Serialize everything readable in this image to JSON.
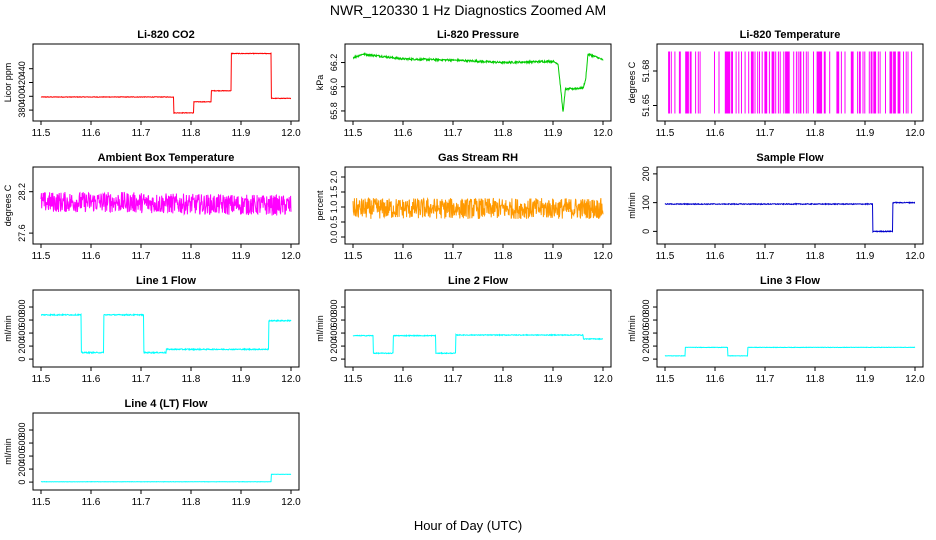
{
  "title": "NWR_120330  1 Hz Diagnostics Zoomed AM",
  "xlabel": "Hour of Day (UTC)",
  "chart_data": [
    {
      "type": "line",
      "title": "Li-820 CO2",
      "ylabel": "Licor ppm",
      "color": "#ff0000",
      "xlim": [
        11.5,
        12.0
      ],
      "ylim": [
        370,
        470
      ],
      "yticks": [
        {
          "v": 380,
          "label": "380"
        },
        {
          "v": 400,
          "label": "400"
        },
        {
          "v": 420,
          "label": "420"
        },
        {
          "v": 440,
          "label": "440"
        }
      ],
      "noise": 0.4,
      "x": [
        11.5,
        11.765,
        11.765,
        11.805,
        11.805,
        11.84,
        11.84,
        11.88,
        11.88,
        11.96,
        11.96,
        12.0
      ],
      "y": [
        399,
        399,
        376,
        376,
        392,
        392,
        408,
        408,
        462,
        462,
        397,
        397
      ]
    },
    {
      "type": "line",
      "title": "Li-820 Pressure",
      "ylabel": "kPa",
      "color": "#00cc00",
      "xlim": [
        11.5,
        12.0
      ],
      "ylim": [
        65.75,
        66.32
      ],
      "yticks": [
        {
          "v": 65.8,
          "label": "65.8"
        },
        {
          "v": 66.0,
          "label": "66.0"
        },
        {
          "v": 66.2,
          "label": "66.2"
        }
      ],
      "noise": 0.008,
      "x": [
        11.5,
        11.52,
        11.6,
        11.7,
        11.8,
        11.9,
        11.91,
        11.915,
        11.92,
        11.925,
        11.96,
        11.965,
        11.97,
        11.99,
        12.0
      ],
      "y": [
        66.24,
        66.27,
        66.23,
        66.22,
        66.2,
        66.21,
        66.19,
        66.0,
        65.79,
        65.98,
        65.99,
        66.05,
        66.27,
        66.24,
        66.22
      ]
    },
    {
      "type": "line",
      "title": "Li-820 Temperature",
      "ylabel": "degrees C",
      "color": "#ff00ff",
      "xlim": [
        11.5,
        12.0
      ],
      "ylim": [
        51.64,
        51.7
      ],
      "yticks": [
        {
          "v": 51.65,
          "label": "51.65"
        },
        {
          "v": 51.68,
          "label": "51.68"
        }
      ],
      "style": "binary",
      "hi": 51.697,
      "lo": 51.643,
      "x": [
        11.5,
        12.0
      ],
      "y": [
        51.697,
        51.697
      ]
    },
    {
      "type": "line",
      "title": "Ambient Box Temperature",
      "ylabel": "degrees C",
      "color": "#ff00ff",
      "xlim": [
        11.5,
        12.0
      ],
      "ylim": [
        27.5,
        28.5
      ],
      "yticks": [
        {
          "v": 27.6,
          "label": "27.6"
        },
        {
          "v": 28.2,
          "label": "28.2"
        }
      ],
      "noise": 0.15,
      "x": [
        11.5,
        11.65,
        11.8,
        12.0
      ],
      "y": [
        28.05,
        28.05,
        28.02,
        28.0
      ]
    },
    {
      "type": "line",
      "title": "Gas Stream RH",
      "ylabel": "percent",
      "color": "#ff9900",
      "xlim": [
        11.5,
        12.0
      ],
      "ylim": [
        -0.1,
        2.2
      ],
      "yticks": [
        {
          "v": 0.0,
          "label": "0.0"
        },
        {
          "v": 0.5,
          "label": "0.5"
        },
        {
          "v": 1.0,
          "label": "1.0"
        },
        {
          "v": 1.5,
          "label": "1.5"
        },
        {
          "v": 2.0,
          "label": "2.0"
        }
      ],
      "noise": 0.35,
      "x": [
        11.5,
        12.0
      ],
      "y": [
        0.95,
        0.95
      ]
    },
    {
      "type": "line",
      "title": "Sample Flow",
      "ylabel": "ml/min",
      "color": "#0000cc",
      "xlim": [
        11.5,
        12.0
      ],
      "ylim": [
        -30,
        210
      ],
      "yticks": [
        {
          "v": 0,
          "label": "0"
        },
        {
          "v": 100,
          "label": "100"
        },
        {
          "v": 200,
          "label": "200"
        }
      ],
      "noise": 1.5,
      "x": [
        11.5,
        11.915,
        11.915,
        11.955,
        11.955,
        12.0
      ],
      "y": [
        95,
        95,
        0,
        0,
        100,
        100
      ]
    },
    {
      "type": "line",
      "title": "Line 1 Flow",
      "ylabel": "ml/min",
      "color": "#00ffff",
      "xlim": [
        11.5,
        12.0
      ],
      "ylim": [
        -60,
        1000
      ],
      "yticks": [
        {
          "v": 0,
          "label": "0"
        },
        {
          "v": 200,
          "label": "200"
        },
        {
          "v": 400,
          "label": "400"
        },
        {
          "v": 600,
          "label": "600"
        },
        {
          "v": 800,
          "label": "800"
        }
      ],
      "noise": 8,
      "x": [
        11.5,
        11.58,
        11.58,
        11.625,
        11.625,
        11.705,
        11.705,
        11.75,
        11.75,
        11.955,
        11.955,
        12.0
      ],
      "y": [
        680,
        680,
        100,
        100,
        680,
        680,
        100,
        100,
        150,
        150,
        590,
        590
      ]
    },
    {
      "type": "line",
      "title": "Line 2 Flow",
      "ylabel": "ml/min",
      "color": "#00ffff",
      "xlim": [
        11.5,
        12.0
      ],
      "ylim": [
        -60,
        1000
      ],
      "yticks": [
        {
          "v": 0,
          "label": "0"
        },
        {
          "v": 200,
          "label": "200"
        },
        {
          "v": 400,
          "label": "400"
        },
        {
          "v": 600,
          "label": "600"
        },
        {
          "v": 800,
          "label": "800"
        }
      ],
      "noise": 6,
      "x": [
        11.5,
        11.54,
        11.54,
        11.58,
        11.58,
        11.665,
        11.665,
        11.705,
        11.705,
        11.96,
        11.96,
        12.0
      ],
      "y": [
        360,
        360,
        90,
        90,
        360,
        360,
        90,
        90,
        370,
        370,
        310,
        310
      ]
    },
    {
      "type": "line",
      "title": "Line 3 Flow",
      "ylabel": "ml/min",
      "color": "#00ffff",
      "xlim": [
        11.5,
        12.0
      ],
      "ylim": [
        -60,
        1000
      ],
      "yticks": [
        {
          "v": 0,
          "label": "0"
        },
        {
          "v": 200,
          "label": "200"
        },
        {
          "v": 400,
          "label": "400"
        },
        {
          "v": 600,
          "label": "600"
        },
        {
          "v": 800,
          "label": "800"
        }
      ],
      "noise": 3,
      "x": [
        11.5,
        11.54,
        11.54,
        11.625,
        11.625,
        11.665,
        11.665,
        12.0
      ],
      "y": [
        50,
        50,
        180,
        180,
        50,
        50,
        180,
        180
      ]
    },
    {
      "type": "line",
      "title": "Line 4 (LT) Flow",
      "ylabel": "ml/min",
      "color": "#00ffff",
      "xlim": [
        11.5,
        12.0
      ],
      "ylim": [
        -60,
        1000
      ],
      "yticks": [
        {
          "v": 0,
          "label": "0"
        },
        {
          "v": 200,
          "label": "200"
        },
        {
          "v": 400,
          "label": "400"
        },
        {
          "v": 600,
          "label": "600"
        },
        {
          "v": 800,
          "label": "800"
        }
      ],
      "noise": 2,
      "x": [
        11.5,
        11.96,
        11.96,
        12.0
      ],
      "y": [
        5,
        5,
        120,
        120
      ]
    }
  ],
  "xticks": [
    {
      "v": 11.5,
      "label": "11.5"
    },
    {
      "v": 11.6,
      "label": "11.6"
    },
    {
      "v": 11.7,
      "label": "11.7"
    },
    {
      "v": 11.8,
      "label": "11.8"
    },
    {
      "v": 11.9,
      "label": "11.9"
    },
    {
      "v": 12.0,
      "label": "12.0"
    }
  ]
}
